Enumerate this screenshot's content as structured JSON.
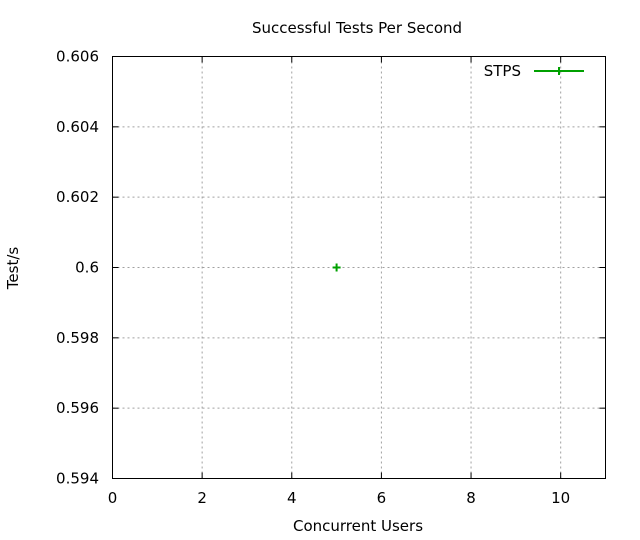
{
  "chart_data": {
    "type": "scatter",
    "title": "Successful Tests Per Second",
    "xlabel": "Concurrent Users",
    "ylabel": "Test/s",
    "xlim": [
      0,
      11
    ],
    "ylim": [
      0.594,
      0.606
    ],
    "xticks": [
      "0",
      "2",
      "4",
      "6",
      "8",
      "10"
    ],
    "yticks": [
      "0.594",
      "0.596",
      "0.598",
      "0.6",
      "0.602",
      "0.604",
      "0.606"
    ],
    "grid": true,
    "legend_position": "top-right",
    "series": [
      {
        "name": "STPS",
        "color": "#00a000",
        "marker": "plus",
        "x": [
          5
        ],
        "y": [
          0.6
        ]
      }
    ]
  }
}
